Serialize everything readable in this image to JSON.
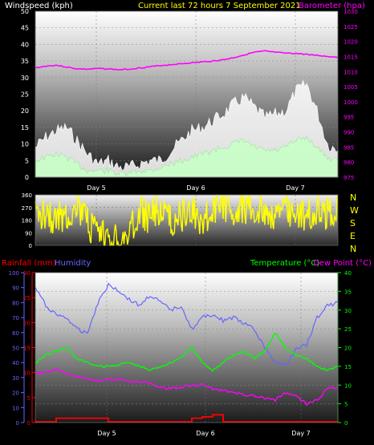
{
  "header": {
    "wind_label": "Windspeed (kph)",
    "center_title": "Current last 72 hours 7 September 2021",
    "baro_label": "Barometer (hpa)"
  },
  "colors": {
    "wind_label": "#ffffff",
    "title": "#ffff00",
    "baro": "#ff00ff",
    "gust": "#ffffff",
    "wind": "#c8ffc8",
    "direction": "#ffff00",
    "rain": "#ff0000",
    "humidity": "#6666ff",
    "temperature": "#00ff00",
    "dewpoint": "#ff00ff"
  },
  "compass": [
    "N",
    "W",
    "S",
    "E",
    "N"
  ],
  "bottom_labels": {
    "rain": "Rainfall (mm)",
    "humidity": "Humidity",
    "temperature": "Temperature (°C)",
    "dewpoint": "Dew Point (°C)"
  },
  "chart_data": [
    {
      "type": "line",
      "panel": "wind-barometer",
      "x_ticks": [
        "Day 5",
        "Day 6",
        "Day 7"
      ],
      "y_left": {
        "label": "Windspeed (kph)",
        "ticks": [
          0,
          5,
          10,
          15,
          20,
          25,
          30,
          35,
          40,
          45,
          50
        ],
        "ylim": [
          0,
          50
        ]
      },
      "y_right": {
        "label": "Barometer (hpa)",
        "ticks": [
          975,
          980,
          985,
          990,
          995,
          1000,
          1005,
          1010,
          1015,
          1020,
          1025,
          1030
        ],
        "ylim": [
          975,
          1030
        ]
      },
      "series": [
        {
          "name": "Barometer (hpa)",
          "axis": "right",
          "values": [
            1011.2,
            1011.8,
            1012.1,
            1011.5,
            1010.9,
            1010.8,
            1011.0,
            1010.9,
            1010.6,
            1010.8,
            1011.2,
            1011.6,
            1012.0,
            1012.3,
            1012.6,
            1012.9,
            1013.2,
            1013.5,
            1013.9,
            1014.6,
            1015.5,
            1016.4,
            1016.8,
            1016.4,
            1016.1,
            1016.0,
            1015.7,
            1015.4,
            1015.0,
            1014.8
          ]
        },
        {
          "axis": "left",
          "values": [
            9,
            12,
            14,
            15,
            11,
            7,
            4,
            5,
            3,
            3,
            4,
            5,
            5,
            8,
            11,
            14,
            15,
            17,
            19,
            22,
            24,
            21,
            18,
            19,
            20,
            26,
            28,
            20,
            10,
            8
          ]
        },
        {
          "axis": "left",
          "values": [
            5,
            6,
            7,
            6,
            4,
            2,
            2,
            2,
            1,
            1,
            2,
            2,
            3,
            4,
            5,
            6,
            7,
            8,
            9,
            10,
            11,
            9,
            8,
            8,
            9,
            11,
            12,
            9,
            6,
            5
          ]
        }
      ]
    },
    {
      "type": "line",
      "panel": "wind-direction",
      "x_ticks": [
        "Day 5",
        "Day 6",
        "Day 7"
      ],
      "y_left": {
        "ticks": [
          0,
          90,
          180,
          270,
          360
        ],
        "ylim": [
          0,
          360
        ]
      },
      "series": [
        {
          "axis": "left",
          "values": [
            200,
            250,
            180,
            220,
            280,
            150,
            60,
            40,
            20,
            80,
            230,
            200,
            260,
            170,
            210,
            240,
            190,
            220,
            300,
            250,
            280,
            230,
            260,
            210,
            270,
            240,
            200,
            260,
            230,
            250
          ]
        }
      ]
    },
    {
      "type": "line",
      "panel": "temperature-humidity",
      "x_ticks": [
        "Day 5",
        "Day 6",
        "Day 7"
      ],
      "y_left_outer": {
        "label": "Humidity",
        "ticks": [
          0,
          10,
          20,
          30,
          40,
          50,
          60,
          70,
          80,
          90,
          100
        ],
        "ylim": [
          0,
          100
        ]
      },
      "y_left_inner": {
        "label": "Rainfall (mm)",
        "ticks": [
          0,
          5,
          10,
          15,
          20,
          25,
          30
        ],
        "ylim": [
          0,
          30
        ]
      },
      "y_right": {
        "label": "Temperature (°C)",
        "ticks": [
          0,
          5,
          10,
          15,
          20,
          25,
          30,
          35,
          40
        ],
        "ylim": [
          0,
          40
        ]
      },
      "series": [
        {
          "name": "Humidity",
          "axis": "left_outer",
          "values": [
            90,
            78,
            72,
            70,
            62,
            60,
            80,
            92,
            88,
            82,
            78,
            85,
            80,
            75,
            78,
            62,
            70,
            72,
            68,
            70,
            66,
            62,
            50,
            40,
            38,
            50,
            52,
            70,
            78,
            80
          ]
        },
        {
          "name": "Rainfall (mm)",
          "axis": "left_inner",
          "values": [
            0,
            0,
            0.7,
            0.7,
            0.7,
            0.7,
            0.7,
            0,
            0,
            0,
            0,
            0,
            0,
            0,
            0,
            0.7,
            1.0,
            1.4,
            0,
            0,
            0,
            0,
            0,
            0,
            0,
            0,
            0,
            0,
            0,
            0
          ]
        },
        {
          "name": "Temperature (°C)",
          "axis": "right",
          "values": [
            16,
            18,
            19,
            20,
            17,
            16,
            15,
            15,
            15.5,
            16,
            15,
            14,
            15,
            16,
            17.5,
            20,
            16,
            14,
            16,
            18,
            19,
            17,
            19,
            24,
            20,
            18,
            17,
            15,
            14,
            15
          ]
        },
        {
          "name": "Dew Point (°C)",
          "axis": "right",
          "values": [
            13,
            13.5,
            14,
            13,
            12,
            12,
            11,
            11.5,
            11.5,
            11,
            11,
            10.5,
            9.5,
            9,
            9.5,
            10,
            10,
            9,
            8.5,
            8,
            7.5,
            7,
            6.5,
            6,
            8,
            7,
            5,
            6,
            9,
            9.5
          ]
        }
      ]
    }
  ]
}
